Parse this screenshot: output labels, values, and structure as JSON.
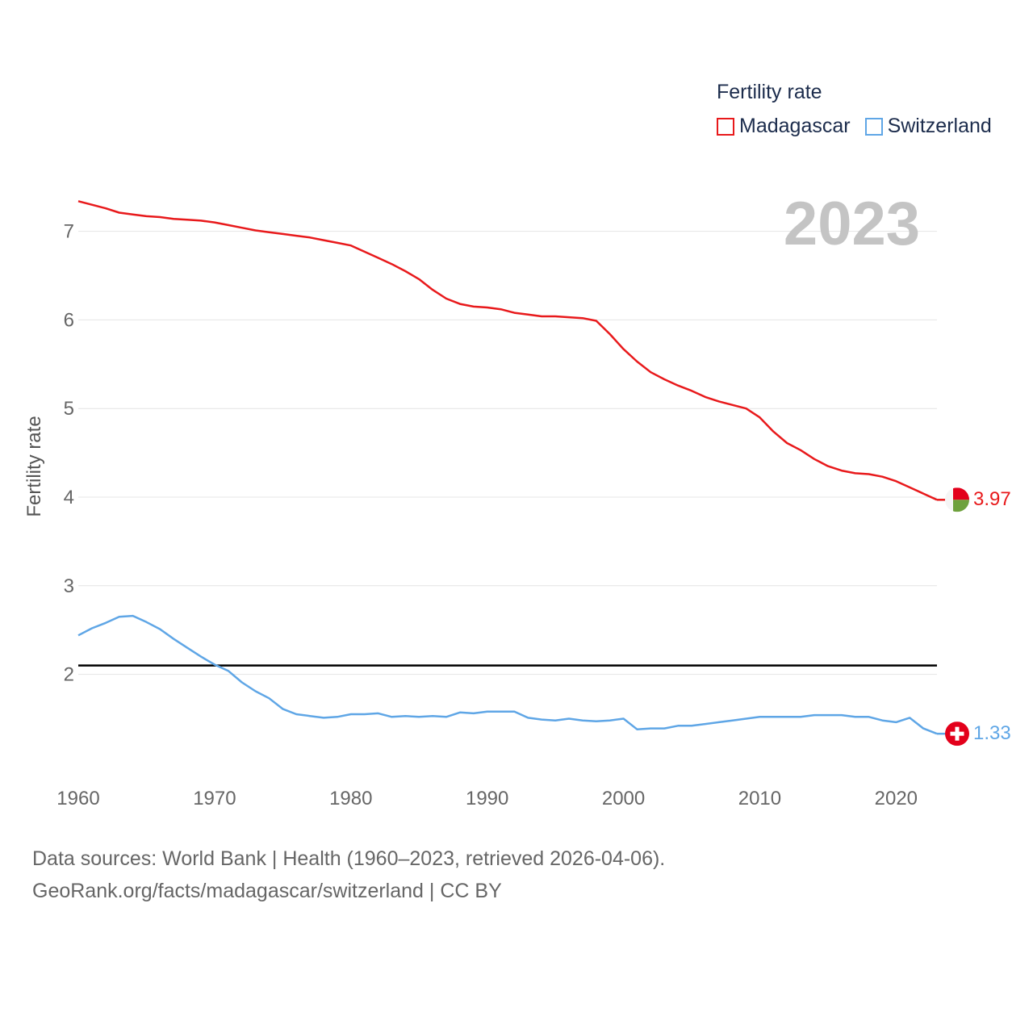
{
  "legend": {
    "title": "Fertility rate",
    "items": [
      {
        "name": "Madagascar",
        "color": "#e8191b"
      },
      {
        "name": "Switzerland",
        "color": "#5fa6e6"
      }
    ]
  },
  "year_label": "2023",
  "source": {
    "line1": "Data sources: World Bank | Health (1960–2023, retrieved 2026-04-06).",
    "line2": "GeoRank.org/facts/madagascar/switzerland | CC BY"
  },
  "end_labels": {
    "madagascar": "3.97",
    "switzerland": "1.33"
  },
  "chart_data": {
    "type": "line",
    "title": "",
    "xlabel": "",
    "ylabel": "Fertility rate",
    "xlim": [
      1960,
      2023
    ],
    "ylim": [
      1.0,
      7.6
    ],
    "x_ticks": [
      1960,
      1970,
      1980,
      1990,
      2000,
      2010,
      2020
    ],
    "y_ticks": [
      2,
      3,
      4,
      5,
      6,
      7
    ],
    "reference_line": {
      "value": 2.1,
      "color": "#000000"
    },
    "x": [
      1960,
      1961,
      1962,
      1963,
      1964,
      1965,
      1966,
      1967,
      1968,
      1969,
      1970,
      1971,
      1972,
      1973,
      1974,
      1975,
      1976,
      1977,
      1978,
      1979,
      1980,
      1981,
      1982,
      1983,
      1984,
      1985,
      1986,
      1987,
      1988,
      1989,
      1990,
      1991,
      1992,
      1993,
      1994,
      1995,
      1996,
      1997,
      1998,
      1999,
      2000,
      2001,
      2002,
      2003,
      2004,
      2005,
      2006,
      2007,
      2008,
      2009,
      2010,
      2011,
      2012,
      2013,
      2014,
      2015,
      2016,
      2017,
      2018,
      2019,
      2020,
      2021,
      2022,
      2023
    ],
    "series": [
      {
        "name": "Madagascar",
        "color": "#e8191b",
        "values": [
          7.34,
          7.3,
          7.26,
          7.21,
          7.19,
          7.17,
          7.16,
          7.14,
          7.13,
          7.12,
          7.1,
          7.07,
          7.04,
          7.01,
          6.99,
          6.97,
          6.95,
          6.93,
          6.9,
          6.87,
          6.84,
          6.77,
          6.7,
          6.63,
          6.55,
          6.46,
          6.34,
          6.24,
          6.18,
          6.15,
          6.14,
          6.12,
          6.08,
          6.06,
          6.04,
          6.04,
          6.03,
          6.02,
          5.99,
          5.84,
          5.67,
          5.53,
          5.41,
          5.33,
          5.26,
          5.2,
          5.13,
          5.08,
          5.04,
          5.0,
          4.9,
          4.74,
          4.61,
          4.53,
          4.43,
          4.35,
          4.3,
          4.27,
          4.26,
          4.23,
          4.18,
          4.11,
          4.04,
          3.97
        ]
      },
      {
        "name": "Switzerland",
        "color": "#5fa6e6",
        "values": [
          2.44,
          2.52,
          2.58,
          2.65,
          2.66,
          2.59,
          2.51,
          2.4,
          2.3,
          2.2,
          2.11,
          2.04,
          1.91,
          1.81,
          1.73,
          1.61,
          1.55,
          1.53,
          1.51,
          1.52,
          1.55,
          1.55,
          1.56,
          1.52,
          1.53,
          1.52,
          1.53,
          1.52,
          1.57,
          1.56,
          1.58,
          1.58,
          1.58,
          1.51,
          1.49,
          1.48,
          1.5,
          1.48,
          1.47,
          1.48,
          1.5,
          1.38,
          1.39,
          1.39,
          1.42,
          1.42,
          1.44,
          1.46,
          1.48,
          1.5,
          1.52,
          1.52,
          1.52,
          1.52,
          1.54,
          1.54,
          1.54,
          1.52,
          1.52,
          1.48,
          1.46,
          1.51,
          1.39,
          1.33
        ]
      }
    ]
  }
}
